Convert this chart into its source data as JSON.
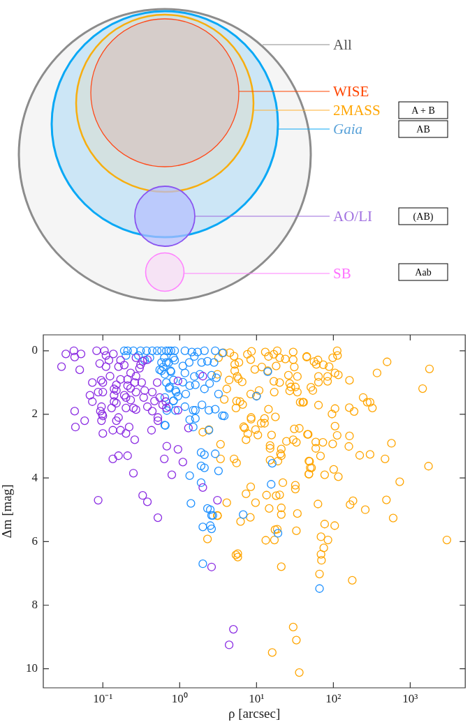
{
  "chart_data": [
    {
      "type": "other",
      "annotations": [
        "All",
        "WISE",
        "2MASS",
        "Gaia",
        "AO/LI",
        "SB",
        "A + B",
        "AB",
        "(AB)",
        "Aab"
      ]
    },
    {
      "type": "scatter",
      "xlabel": "ρ [arcsec]",
      "ylabel": "Δm [mag]",
      "log": "x",
      "grid": false,
      "legend": false,
      "marker": "circle",
      "xlim": [
        0.0168,
        5200
      ],
      "ylim": [
        10.6,
        -0.5
      ],
      "xticks": [
        {
          "value": 0.1,
          "label": "10⁻¹"
        },
        {
          "value": 1,
          "label": "10⁰"
        },
        {
          "value": 10,
          "label": "10¹"
        },
        {
          "value": 100,
          "label": "10²"
        },
        {
          "value": 1000,
          "label": "10³"
        }
      ],
      "yticks": [
        0,
        2,
        4,
        6,
        8,
        10
      ],
      "series": [
        {
          "color": "#8a2be2",
          "x": [
            0.029,
            0.033,
            0.042,
            0.043,
            0.052,
            0.05,
            0.083,
            0.105,
            0.11,
            0.137,
            0.091,
            0.11,
            0.12,
            0.16,
            0.17,
            0.19,
            0.073,
            0.095,
            0.1,
            0.124,
            0.068,
            0.073,
            0.087,
            0.1,
            0.096,
            0.093,
            0.098,
            0.1,
            0.096,
            0.043,
            0.058,
            0.044,
            0.1,
            0.135,
            0.17,
            0.2,
            0.22,
            0.26,
            0.43,
            0.15,
            0.14,
            0.15,
            0.14,
            0.14,
            0.13,
            0.15,
            0.16,
            0.15,
            0.17,
            0.21,
            0.23,
            0.21,
            0.23,
            0.19,
            0.2,
            0.23,
            0.27,
            0.2,
            0.25,
            0.27,
            0.26,
            0.27,
            0.32,
            0.35,
            0.34,
            0.38,
            0.44,
            0.47,
            0.55,
            0.51,
            0.44,
            0.52,
            0.52,
            0.3,
            0.33,
            0.38,
            0.27,
            0.31,
            0.68,
            0.63,
            0.79,
            0.95,
            0.135,
            0.16,
            0.21,
            0.25,
            0.087,
            0.33,
            0.38,
            0.52,
            0.6,
            0.67,
            2.6,
            5.0,
            4.4,
            1.1,
            2.0,
            1.3,
            2.0,
            3.1,
            0.95,
            0.66,
            0.95
          ],
          "values": [
            0.5,
            0.1,
            0,
            0.2,
            0.1,
            0.6,
            0,
            0,
            0.15,
            0.1,
            0.4,
            0.5,
            0.3,
            0.5,
            0.3,
            0.45,
            1.0,
            0.93,
            1.0,
            0.8,
            1.4,
            1.6,
            1.3,
            1.3,
            1.76,
            1.9,
            2.0,
            2.05,
            2.2,
            1.9,
            2.2,
            2.4,
            2.6,
            2.5,
            2.5,
            2.6,
            2.4,
            2.8,
            2.5,
            1.07,
            1.2,
            1.25,
            1.4,
            1.6,
            1.8,
            1.65,
            2.1,
            2.2,
            0.9,
            0.9,
            0.7,
            1.1,
            1.18,
            1.4,
            1.47,
            1.55,
            1.3,
            1.8,
            1.8,
            1.85,
            1.0,
            0.8,
            1.0,
            1.25,
            1.47,
            1.76,
            1.3,
            1.58,
            1.47,
            1.0,
            1.9,
            2.1,
            2.2,
            0.55,
            0.33,
            0.28,
            0.22,
            0.44,
            3.0,
            3.4,
            3.9,
            3.1,
            3.4,
            3.3,
            3.3,
            3.85,
            4.7,
            4.55,
            4.75,
            5.25,
            1.7,
            1.8,
            6.8,
            8.76,
            9.25,
            3.5,
            0.8,
            2.43,
            4.3,
            4.7,
            1.87,
            1.6,
            0.95
          ]
        },
        {
          "color": "#1e90ff",
          "x": [
            0.64,
            0.64,
            0.67,
            0.83,
            0.88,
            0.68,
            0.73,
            0.9,
            0.58,
            0.19,
            0.21,
            0.25,
            0.31,
            0.37,
            0.44,
            0.51,
            0.58,
            0.67,
            0.77,
            0.2,
            0.29,
            0.41,
            0.63,
            0.72,
            0.86,
            0.58,
            0.55,
            0.77,
            0.35,
            0.72,
            0.86,
            1.17,
            1.44,
            1.71,
            2.1,
            2.9,
            3.6,
            1.55,
            1.93,
            2.3,
            2.8,
            1.33,
            1.1,
            0.67,
            0.83,
            0.61,
            0.64,
            0.76,
            1.17,
            1.55,
            1.83,
            2.6,
            3.0,
            0.83,
            1.1,
            1.35,
            1.6,
            2.1,
            2.45,
            0.74,
            0.88,
            1.2,
            3.2,
            0.95,
            0.83,
            0.72,
            1.17,
            1.5,
            1.6,
            1.95,
            2.4,
            2.9,
            3.6,
            3.8,
            1.35,
            1.5,
            1.6,
            2.4,
            0.65,
            1.9,
            2.1,
            2.9,
            1.9,
            2.1,
            1.35,
            3.2,
            1.9,
            1.4,
            2.3,
            2.6,
            10,
            14,
            16,
            15.5,
            2.5,
            2.7,
            2.0,
            2.5,
            2.6,
            2.0,
            6.7,
            19,
            66
          ],
          "values": [
            2.34,
            1.47,
            1.0,
            1.57,
            1.88,
            1.88,
            1.18,
            1.3,
            0.63,
            0,
            0,
            0,
            0,
            0,
            0,
            0,
            0,
            0,
            0,
            0.15,
            0.15,
            0.22,
            0.22,
            0.37,
            0.3,
            0.37,
            0.6,
            0.66,
            0.3,
            0,
            0,
            0,
            0.04,
            0.04,
            0,
            0,
            0.07,
            0.18,
            0.37,
            0.33,
            0.37,
            0.37,
            0.48,
            0.37,
            0.22,
            0.51,
            0.74,
            0.63,
            0.7,
            0.81,
            0.74,
            0.77,
            0.85,
            0.92,
            0.99,
            1.1,
            1.07,
            1.2,
            1.03,
            1.14,
            1.25,
            1.36,
            1.36,
            1.43,
            1.58,
            1.76,
            1.76,
            1.87,
            1.87,
            1.7,
            1.87,
            1.84,
            2.04,
            2.05,
            2.17,
            2.4,
            2.13,
            2.5,
            2.35,
            3.2,
            3.27,
            3.24,
            3.62,
            3.68,
            3.93,
            3.78,
            4.15,
            4.8,
            4.96,
            5.18,
            1.43,
            0.66,
            3.54,
            4.2,
            5.0,
            5.18,
            5.54,
            5.5,
            5.6,
            6.7,
            5.15,
            5.74,
            7.48
          ]
        },
        {
          "color": "#ffa500",
          "x": [
            3.2,
            3.7,
            4.5,
            5.1,
            5.2,
            5.9,
            5.2,
            7.6,
            8.6,
            8.4,
            9.5,
            11.7,
            14,
            13,
            14.3,
            16.8,
            18.6,
            20,
            23.7,
            30,
            30,
            31,
            26,
            34,
            45,
            18,
            3.1,
            4.4,
            5.6,
            5.8,
            6.5,
            4.1,
            3.8,
            8.4,
            10,
            10.8,
            16.8,
            20,
            17,
            27,
            28,
            32,
            34,
            27,
            37,
            41,
            5.5,
            6.1,
            6.6,
            5.4,
            14.3,
            17.6,
            8.5,
            8.5,
            12.7,
            11.5,
            6.8,
            7,
            7.7,
            9.7,
            10.4,
            12.7,
            15.7,
            7.3,
            31,
            36,
            47,
            24.5,
            30,
            33,
            15,
            15,
            21,
            20.5,
            21,
            3.4,
            2.0,
            2.4,
            3.4,
            5.1,
            5.5,
            15,
            19,
            48,
            50,
            48,
            8.4,
            7.3,
            9.7,
            13.5,
            18,
            20,
            22,
            32,
            32,
            14.6,
            21,
            21,
            34,
            8.3,
            6.2,
            4.1,
            3.1,
            45,
            56,
            63,
            60,
            74,
            88,
            98,
            112,
            113,
            105,
            116,
            162,
            64,
            64,
            84,
            84,
            51,
            54,
            64,
            40,
            105,
            96,
            161,
            186,
            244,
            276,
            300,
            322,
            500,
            370,
            1780,
            1450,
            105,
            112,
            162,
            46,
            59,
            73,
            59,
            98,
            159,
            68,
            49,
            52,
            48,
            77,
            101,
            116,
            220,
            300,
            570,
            470,
            1730,
            730,
            63,
            165,
            180,
            260,
            490,
            600,
            17.4,
            18.6,
            33,
            13.2,
            17.1,
            5.7,
            5.7,
            21,
            77,
            104,
            69,
            85,
            75,
            69,
            70,
            66,
            176,
            3000,
            30,
            33,
            16,
            36,
            3.1,
            2.3,
            5.4
          ],
          "values": [
            0.22,
            0.06,
            0.06,
            0.17,
            0.43,
            0.37,
            0.63,
            0.11,
            0.02,
            0.28,
            0.59,
            0.51,
            0.63,
            0.04,
            0.18,
            0.11,
            0,
            0.22,
            0.26,
            0.04,
            0.28,
            0.51,
            0.77,
            0.81,
            0.18,
            0.48,
            0.74,
            0.92,
            0.81,
            0.88,
            0.98,
            1.2,
            1.53,
            1.36,
            1.42,
            1.25,
            0.96,
            1.0,
            1.3,
            1.03,
            1.14,
            1.14,
            1.3,
            1.26,
            1.62,
            1.62,
            1.58,
            1.6,
            1.69,
            1.8,
            1.84,
            2.08,
            2.1,
            2.15,
            2.13,
            2.28,
            2.39,
            2.43,
            2.61,
            2.48,
            2.65,
            2.28,
            2.65,
            2.8,
            2.46,
            2.44,
            2.63,
            2.85,
            2.8,
            2.88,
            2.98,
            3.07,
            3.09,
            3.24,
            3.3,
            2.94,
            2.56,
            2.48,
            3.4,
            3.4,
            3.53,
            3.44,
            3.47,
            3.47,
            3.68,
            3.88,
            4.28,
            4.5,
            4.78,
            4.54,
            4.56,
            4.53,
            4.15,
            4.23,
            4.35,
            4.96,
            4.94,
            5.15,
            5.12,
            5.24,
            5.37,
            4.78,
            5.18,
            0.2,
            0.34,
            0.29,
            0.43,
            0.44,
            0.5,
            0.22,
            0,
            0.15,
            0.7,
            0.76,
            0.93,
            0.81,
            0.99,
            0.81,
            0.96,
            1.15,
            1.25,
            1.71,
            1.62,
            1.82,
            1.99,
            1.79,
            1.91,
            1.47,
            1.62,
            1.62,
            1.8,
            0.35,
            0.7,
            0.57,
            1.19,
            2.37,
            2.66,
            2.68,
            2.63,
            2.87,
            2.88,
            3.07,
            2.93,
            3.01,
            3.31,
            3.48,
            3.68,
            3.88,
            3.9,
            3.73,
            3.96,
            3.29,
            3.26,
            2.91,
            3.4,
            3.63,
            4.12,
            4.82,
            4.84,
            4.72,
            5.0,
            4.69,
            5.26,
            5.63,
            5.61,
            5.66,
            5.96,
            5.95,
            6.38,
            6.49,
            6.79,
            5.45,
            5.5,
            5.85,
            5.95,
            6.2,
            6.4,
            6.59,
            7.02,
            7.22,
            5.95,
            8.69,
            9.1,
            9.49,
            10.12,
            5.19,
            5.92,
            6.42
          ]
        }
      ]
    }
  ]
}
